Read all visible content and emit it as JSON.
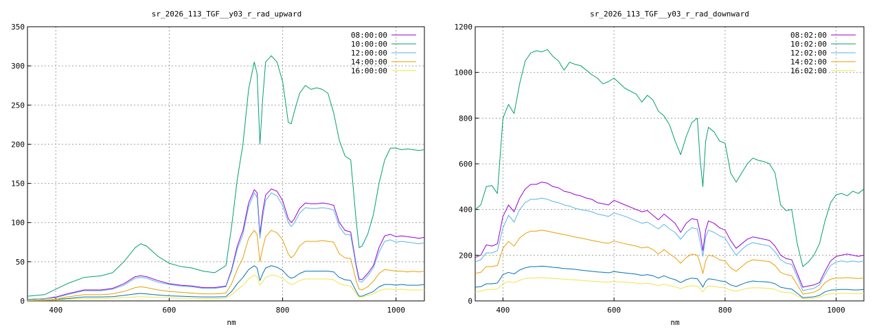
{
  "chart_data": [
    {
      "type": "line",
      "title": "sr_2026_113_TGF__y03_r_rad_upward",
      "xlabel": "nm",
      "ylabel": "",
      "xlim": [
        350,
        1050
      ],
      "ylim": [
        0,
        350
      ],
      "xticks": [
        400,
        600,
        800,
        1000
      ],
      "yticks": [
        0,
        50,
        100,
        150,
        200,
        250,
        300,
        350
      ],
      "grid": true,
      "legend_position": "top-right",
      "x": [
        350,
        380,
        400,
        420,
        450,
        480,
        500,
        520,
        540,
        550,
        560,
        580,
        600,
        620,
        640,
        660,
        680,
        700,
        710,
        720,
        730,
        740,
        750,
        755,
        760,
        765,
        770,
        780,
        790,
        800,
        810,
        815,
        820,
        830,
        840,
        850,
        860,
        870,
        880,
        890,
        900,
        910,
        920,
        930,
        935,
        940,
        950,
        960,
        970,
        980,
        990,
        1000,
        1010,
        1020,
        1030,
        1040,
        1050
      ],
      "series": [
        {
          "name": "08:00:00",
          "color": "#9400d3",
          "values": [
            2,
            3,
            5,
            9,
            14,
            14,
            16,
            22,
            31,
            32,
            31,
            26,
            22,
            20,
            19,
            17,
            17,
            19,
            40,
            70,
            90,
            125,
            142,
            138,
            85,
            115,
            135,
            143,
            140,
            128,
            105,
            100,
            104,
            118,
            125,
            124,
            124,
            125,
            124,
            122,
            100,
            90,
            88,
            45,
            28,
            27,
            35,
            45,
            68,
            83,
            85,
            82,
            83,
            82,
            81,
            80,
            81
          ]
        },
        {
          "name": "10:00:00",
          "color": "#009e73",
          "values": [
            6,
            8,
            15,
            22,
            30,
            32,
            36,
            50,
            68,
            73,
            70,
            57,
            48,
            44,
            42,
            38,
            36,
            45,
            95,
            155,
            200,
            270,
            305,
            290,
            200,
            260,
            305,
            313,
            305,
            280,
            228,
            226,
            240,
            265,
            275,
            270,
            272,
            270,
            265,
            240,
            205,
            185,
            180,
            100,
            68,
            70,
            85,
            110,
            150,
            180,
            195,
            195,
            193,
            194,
            193,
            192,
            193
          ]
        },
        {
          "name": "12:00:00",
          "color": "#56b4e9",
          "values": [
            2,
            3,
            4,
            8,
            13,
            13,
            15,
            20,
            29,
            30,
            29,
            24,
            21,
            19,
            18,
            16,
            16,
            18,
            38,
            66,
            85,
            120,
            138,
            132,
            80,
            108,
            128,
            138,
            134,
            122,
            100,
            95,
            99,
            112,
            119,
            118,
            118,
            119,
            118,
            116,
            95,
            85,
            84,
            42,
            25,
            24,
            32,
            42,
            62,
            76,
            78,
            75,
            76,
            75,
            74,
            73,
            74
          ]
        },
        {
          "name": "14:00:00",
          "color": "#e69f00",
          "values": [
            1,
            1.5,
            2,
            5,
            8,
            8,
            9,
            12,
            17,
            18,
            17,
            14,
            12,
            11,
            10,
            9,
            9,
            10,
            22,
            40,
            55,
            80,
            90,
            85,
            50,
            68,
            82,
            90,
            87,
            78,
            60,
            55,
            58,
            70,
            76,
            76,
            76,
            77,
            76,
            75,
            60,
            55,
            54,
            25,
            15,
            14,
            18,
            25,
            35,
            40,
            39,
            38,
            38,
            37,
            38,
            37,
            38
          ]
        },
        {
          "name": "16:00:00",
          "color": "#f0e442",
          "values": [
            0.5,
            0.8,
            1,
            2,
            3,
            3,
            3.5,
            4,
            5,
            5.5,
            5,
            4.5,
            4,
            3.5,
            3.5,
            3,
            3,
            3.5,
            8,
            14,
            20,
            28,
            33,
            31,
            20,
            25,
            30,
            33,
            32,
            29,
            23,
            21,
            22,
            26,
            28,
            28,
            28,
            28,
            28,
            27,
            22,
            20,
            19,
            9,
            5,
            5,
            7,
            9,
            13,
            15,
            15,
            14,
            15,
            14,
            14,
            14,
            14
          ]
        }
      ],
      "extra_series": [
        {
          "name": "",
          "color": "#0072b2",
          "note": "",
          "values": [
            1,
            1.5,
            2,
            3,
            5,
            5,
            5.5,
            7,
            9,
            9.5,
            9,
            7.5,
            6.5,
            6,
            5.5,
            5,
            5,
            5.5,
            12,
            22,
            30,
            40,
            45,
            42,
            26,
            35,
            42,
            45,
            43,
            39,
            31,
            29,
            30,
            35,
            38,
            38,
            38,
            38,
            38,
            37,
            30,
            27,
            26,
            12,
            6,
            6,
            9,
            12,
            18,
            21,
            21,
            20,
            21,
            20,
            20,
            20,
            21
          ]
        }
      ]
    },
    {
      "type": "line",
      "title": "sr_2026_113_TGF__y03_r_rad_downward",
      "xlabel": "nm",
      "ylabel": "",
      "xlim": [
        350,
        1050
      ],
      "ylim": [
        0,
        1200
      ],
      "xticks": [
        400,
        600,
        800,
        1000
      ],
      "yticks": [
        0,
        200,
        400,
        600,
        800,
        1000,
        1200
      ],
      "grid": true,
      "legend_position": "top-right",
      "x": [
        350,
        360,
        370,
        380,
        390,
        400,
        410,
        420,
        430,
        440,
        450,
        460,
        470,
        480,
        490,
        500,
        510,
        520,
        530,
        540,
        550,
        560,
        570,
        580,
        590,
        600,
        620,
        640,
        650,
        660,
        670,
        680,
        690,
        700,
        710,
        720,
        730,
        740,
        750,
        755,
        760,
        765,
        770,
        780,
        790,
        800,
        810,
        820,
        830,
        840,
        850,
        860,
        870,
        880,
        890,
        900,
        910,
        920,
        930,
        940,
        950,
        960,
        970,
        980,
        990,
        1000,
        1010,
        1020,
        1030,
        1040,
        1050
      ],
      "series": [
        {
          "name": "08:02:00",
          "color": "#9400d3",
          "values": [
            190,
            200,
            245,
            240,
            250,
            370,
            420,
            390,
            450,
            490,
            510,
            510,
            520,
            515,
            500,
            495,
            480,
            475,
            465,
            460,
            450,
            445,
            430,
            425,
            420,
            440,
            420,
            400,
            390,
            395,
            375,
            355,
            380,
            360,
            340,
            300,
            340,
            360,
            355,
            300,
            220,
            310,
            350,
            340,
            320,
            310,
            265,
            230,
            250,
            270,
            280,
            275,
            270,
            265,
            240,
            200,
            185,
            180,
            120,
            60,
            65,
            70,
            80,
            130,
            175,
            195,
            200,
            205,
            200,
            195,
            200
          ]
        },
        {
          "name": "10:02:00",
          "color": "#009e73",
          "values": [
            400,
            420,
            500,
            505,
            470,
            800,
            860,
            820,
            950,
            1050,
            1085,
            1095,
            1090,
            1100,
            1070,
            1050,
            1010,
            1045,
            1035,
            1030,
            1010,
            990,
            975,
            950,
            960,
            975,
            930,
            905,
            870,
            900,
            880,
            830,
            810,
            770,
            700,
            640,
            720,
            780,
            800,
            620,
            500,
            700,
            760,
            740,
            700,
            690,
            560,
            520,
            560,
            600,
            625,
            615,
            610,
            600,
            560,
            420,
            395,
            400,
            250,
            150,
            170,
            200,
            250,
            350,
            430,
            465,
            470,
            460,
            480,
            470,
            490
          ]
        },
        {
          "name": "12:02:00",
          "color": "#56b4e9",
          "values": [
            170,
            180,
            210,
            210,
            220,
            320,
            375,
            345,
            400,
            430,
            445,
            445,
            450,
            445,
            435,
            430,
            420,
            415,
            405,
            400,
            395,
            390,
            380,
            375,
            370,
            385,
            370,
            350,
            340,
            345,
            330,
            315,
            335,
            315,
            300,
            270,
            300,
            320,
            315,
            260,
            195,
            280,
            310,
            300,
            285,
            275,
            235,
            200,
            225,
            245,
            255,
            250,
            245,
            240,
            215,
            180,
            165,
            160,
            105,
            45,
            50,
            55,
            70,
            115,
            155,
            170,
            175,
            170,
            175,
            170,
            175
          ]
        },
        {
          "name": "14:02:00",
          "color": "#e69f00",
          "values": [
            120,
            125,
            150,
            150,
            155,
            230,
            260,
            240,
            275,
            295,
            305,
            305,
            310,
            305,
            300,
            295,
            290,
            285,
            280,
            275,
            270,
            265,
            260,
            255,
            252,
            262,
            250,
            240,
            232,
            236,
            225,
            205,
            225,
            205,
            190,
            165,
            190,
            205,
            200,
            165,
            120,
            175,
            200,
            195,
            180,
            175,
            145,
            130,
            150,
            170,
            180,
            178,
            175,
            172,
            155,
            125,
            115,
            110,
            70,
            30,
            33,
            38,
            50,
            80,
            95,
            100,
            100,
            102,
            100,
            98,
            100
          ]
        },
        {
          "name": "16:02:00",
          "color": "#f0e442",
          "values": [
            40,
            42,
            50,
            50,
            52,
            75,
            85,
            80,
            90,
            98,
            100,
            100,
            102,
            100,
            98,
            97,
            95,
            93,
            92,
            90,
            88,
            86,
            85,
            83,
            82,
            85,
            82,
            78,
            75,
            77,
            73,
            67,
            73,
            67,
            62,
            54,
            62,
            67,
            65,
            54,
            40,
            57,
            65,
            63,
            59,
            57,
            47,
            42,
            49,
            55,
            58,
            57,
            56,
            55,
            50,
            40,
            37,
            35,
            22,
            10,
            11,
            12,
            16,
            26,
            31,
            32,
            33,
            33,
            32,
            32,
            33
          ]
        }
      ],
      "extra_series": [
        {
          "name": "",
          "color": "#0072b2",
          "note": "",
          "values": [
            60,
            62,
            75,
            75,
            78,
            115,
            125,
            118,
            135,
            145,
            150,
            150,
            152,
            150,
            147,
            145,
            142,
            140,
            138,
            135,
            132,
            130,
            127,
            125,
            123,
            128,
            122,
            117,
            112,
            115,
            110,
            100,
            110,
            100,
            93,
            80,
            93,
            100,
            97,
            80,
            60,
            85,
            97,
            94,
            88,
            85,
            70,
            63,
            73,
            82,
            87,
            85,
            84,
            82,
            75,
            60,
            55,
            52,
            33,
            14,
            16,
            18,
            24,
            40,
            47,
            49,
            50,
            50,
            48,
            48,
            50
          ]
        }
      ]
    }
  ]
}
